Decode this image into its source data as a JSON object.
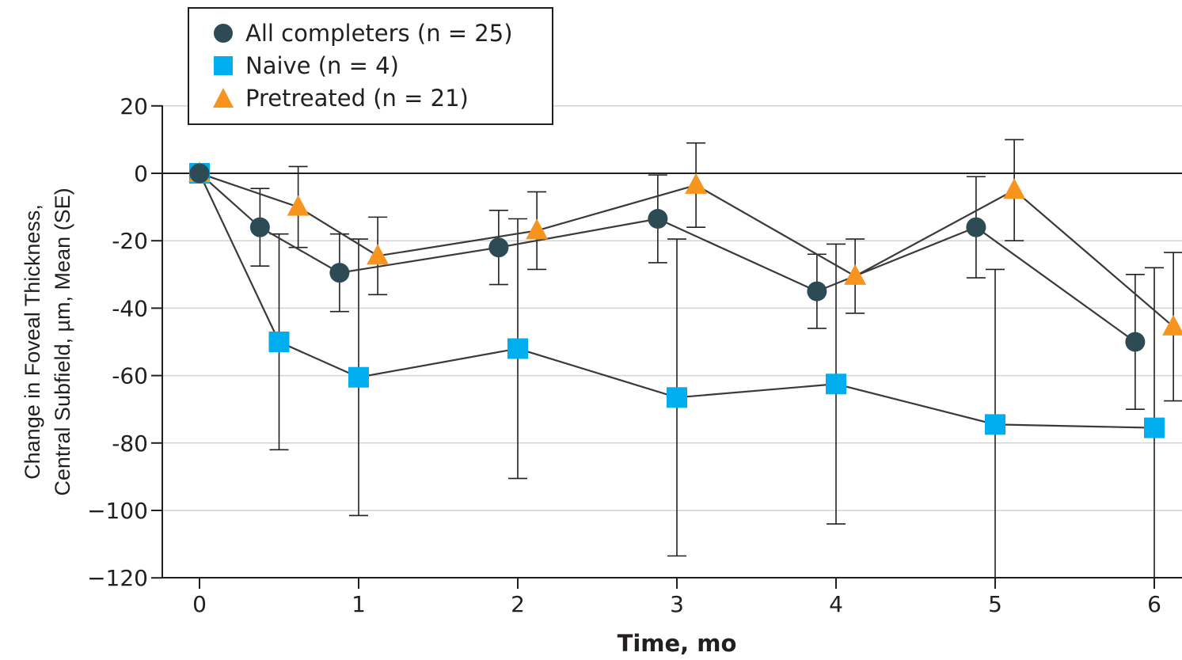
{
  "chart_data": {
    "type": "line",
    "xlabel": "Time, mo",
    "ylabel_lines": [
      "Change in Foveal Thickness,",
      "Central Subfield, µm, Mean (SE)"
    ],
    "xlim": [
      0,
      6
    ],
    "ylim": [
      -120,
      20
    ],
    "x_ticks": [
      0,
      1,
      2,
      3,
      4,
      5,
      6
    ],
    "x_tick_labels": [
      "0",
      "1",
      "2",
      "3",
      "4",
      "5",
      "6"
    ],
    "y_ticks": [
      20,
      0,
      -20,
      -40,
      -60,
      -80,
      -100,
      -120
    ],
    "y_tick_labels": [
      "20",
      "0",
      "-20",
      "-40",
      "-60",
      "-80",
      "−100",
      "−120"
    ],
    "reference_line_y": 0,
    "grid": "horizontal",
    "legend_position": "top-left",
    "series": [
      {
        "name": "All completers (n = 25)",
        "marker": "circle",
        "color": "#2d4b55",
        "points": [
          {
            "x": 0,
            "y": 0,
            "se": 0
          },
          {
            "x": 0.38,
            "y": -16,
            "se": 11.5
          },
          {
            "x": 0.88,
            "y": -29.5,
            "se": 11.5
          },
          {
            "x": 1.88,
            "y": -22,
            "se": 11
          },
          {
            "x": 2.88,
            "y": -13.5,
            "se": 13
          },
          {
            "x": 3.88,
            "y": -35,
            "se": 11
          },
          {
            "x": 4.88,
            "y": -16,
            "se": 15
          },
          {
            "x": 5.88,
            "y": -50,
            "se": 20
          }
        ]
      },
      {
        "name": "Naive (n = 4)",
        "marker": "square",
        "color": "#00aeef",
        "points": [
          {
            "x": 0,
            "y": 0,
            "se": 0
          },
          {
            "x": 0.5,
            "y": -50,
            "se": 32
          },
          {
            "x": 1.0,
            "y": -60.5,
            "se": 41
          },
          {
            "x": 2.0,
            "y": -52,
            "se": 38.5
          },
          {
            "x": 3.0,
            "y": -66.5,
            "se": 47
          },
          {
            "x": 4.0,
            "y": -62.5,
            "se": 41.5
          },
          {
            "x": 5.0,
            "y": -74.5,
            "se": 46
          },
          {
            "x": 6.0,
            "y": -75.5,
            "se": 47.5
          }
        ]
      },
      {
        "name": "Pretreated (n = 21)",
        "marker": "triangle",
        "color": "#f7941d",
        "points": [
          {
            "x": 0,
            "y": 0,
            "se": 0
          },
          {
            "x": 0.62,
            "y": -10,
            "se": 12
          },
          {
            "x": 1.12,
            "y": -24.5,
            "se": 11.5
          },
          {
            "x": 2.12,
            "y": -17,
            "se": 11.5
          },
          {
            "x": 3.12,
            "y": -3.5,
            "se": 12.5
          },
          {
            "x": 4.12,
            "y": -30.5,
            "se": 11
          },
          {
            "x": 5.12,
            "y": -5,
            "se": 15
          },
          {
            "x": 6.12,
            "y": -45.5,
            "se": 22
          }
        ]
      }
    ]
  }
}
